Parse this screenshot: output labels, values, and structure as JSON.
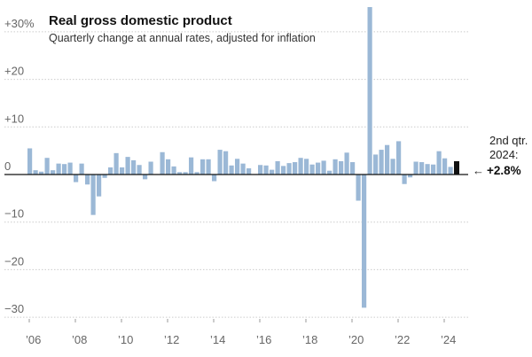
{
  "chart_data": {
    "type": "bar",
    "title": "Real gross domestic product",
    "subtitle": "Quarterly change at annual rates, adjusted for inflation",
    "ylim": [
      -30,
      35
    ],
    "yticks": [
      {
        "value": 30,
        "label": "+30%"
      },
      {
        "value": 20,
        "label": "+20"
      },
      {
        "value": 10,
        "label": "+10"
      },
      {
        "value": 0,
        "label": "0"
      },
      {
        "value": -10,
        "label": "−10"
      },
      {
        "value": -20,
        "label": "−20"
      },
      {
        "value": -30,
        "label": "−30"
      }
    ],
    "xticks": [
      {
        "year": 2006,
        "label": "’06"
      },
      {
        "year": 2008,
        "label": "’08"
      },
      {
        "year": 2010,
        "label": "’10"
      },
      {
        "year": 2012,
        "label": "’12"
      },
      {
        "year": 2014,
        "label": "’14"
      },
      {
        "year": 2016,
        "label": "’16"
      },
      {
        "year": 2018,
        "label": "’18"
      },
      {
        "year": 2020,
        "label": "’20"
      },
      {
        "year": 2022,
        "label": "’22"
      },
      {
        "year": 2024,
        "label": "’24"
      }
    ],
    "grid": true,
    "first_quarter": "2006 Q1",
    "values": [
      5.5,
      0.9,
      0.6,
      3.5,
      0.9,
      2.3,
      2.2,
      2.5,
      -1.6,
      2.3,
      -2.1,
      -8.5,
      -4.6,
      -0.7,
      1.5,
      4.5,
      1.5,
      3.7,
      3.0,
      2.0,
      -1.0,
      2.7,
      0.1,
      4.7,
      3.2,
      1.7,
      0.5,
      0.5,
      3.6,
      0.5,
      3.2,
      3.2,
      -1.4,
      5.2,
      4.9,
      1.9,
      3.3,
      2.3,
      1.3,
      0.1,
      2.0,
      1.9,
      1.0,
      2.8,
      1.8,
      2.4,
      2.6,
      3.5,
      3.3,
      2.1,
      2.5,
      2.9,
      0.8,
      3.2,
      2.8,
      4.6,
      2.6,
      -5.5,
      -28.0,
      35.2,
      4.2,
      5.2,
      6.2,
      3.3,
      7.0,
      -2.0,
      -0.6,
      2.7,
      2.6,
      2.2,
      2.1,
      4.9,
      3.4,
      1.6,
      2.8
    ],
    "highlight": {
      "index": 74,
      "color": "#111111",
      "label_line1": "2nd qtr.",
      "label_line2": "2024:",
      "value_label": "+2.8%"
    },
    "bar_color": "#9bb8d6"
  }
}
